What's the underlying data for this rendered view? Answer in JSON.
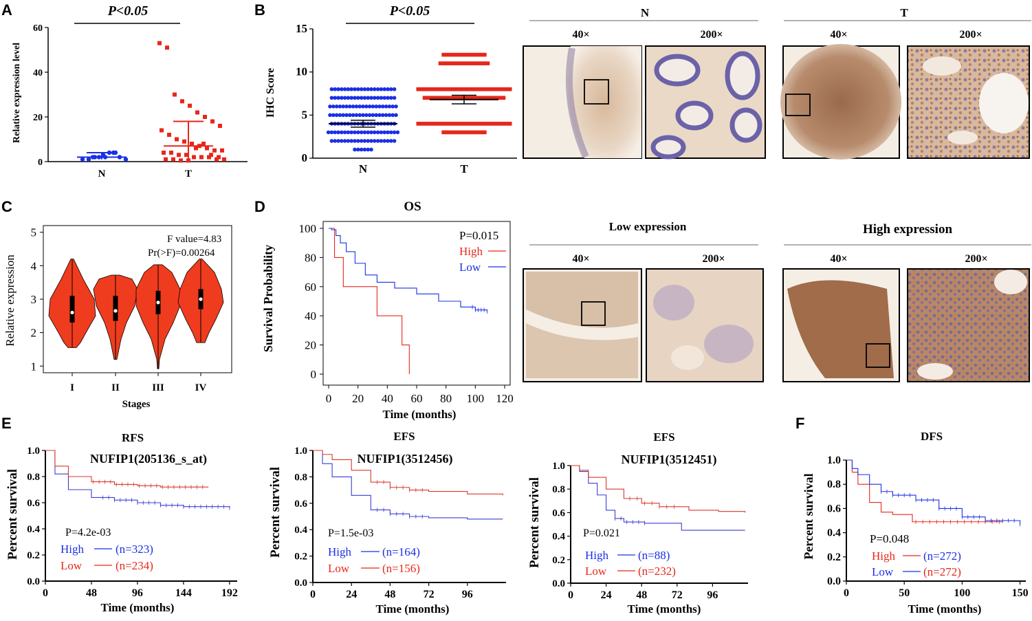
{
  "panels": {
    "A": {
      "letter": "A",
      "pvalue": "P<0.05",
      "ylabel": "Relative expression level",
      "yticks": [
        "0",
        "20",
        "40",
        "60"
      ],
      "groups": [
        "N",
        "T"
      ]
    },
    "B": {
      "letter": "B",
      "pvalue": "P<0.05",
      "ylabel": "IHC Score",
      "yticks": [
        "0",
        "5",
        "10",
        "15"
      ],
      "groups": [
        "N",
        "T"
      ],
      "ihc_n_title": "N",
      "ihc_t_title": "T",
      "mag_low": "40×",
      "mag_high": "200×"
    },
    "C": {
      "letter": "C",
      "ylabel": "Relative expression",
      "xlabel": "Stages",
      "yticks": [
        "1",
        "2",
        "3",
        "4",
        "5"
      ],
      "stages": [
        "I",
        "II",
        "III",
        "IV"
      ],
      "f_value": "F value=4.83",
      "pr": "Pr(>F)=0.00264"
    },
    "D": {
      "letter": "D",
      "title": "OS",
      "ylabel": "Survival  Probability",
      "xlabel": "Time (months)",
      "yticks": [
        "0",
        "20",
        "40",
        "60",
        "80",
        "100"
      ],
      "xticks": [
        "0",
        "20",
        "40",
        "60",
        "80",
        "100",
        "120"
      ],
      "pvalue": "P=0.015",
      "legend_high": "High",
      "legend_low": "Low",
      "ihc_low_title": "Low expression",
      "ihc_high_title": "High expression",
      "mag_low": "40×",
      "mag_high": "200×"
    },
    "E": {
      "letter": "E",
      "e1": {
        "title": "RFS",
        "gene": "NUFIP1(205136_s_at)",
        "pvalue": "P=4.2e-03",
        "high": "High",
        "low": "Low",
        "n_high": "(n=323)",
        "n_low": "(n=234)",
        "xticks": [
          "0",
          "48",
          "96",
          "144",
          "192"
        ],
        "yticks": [
          "0.0",
          "0.2",
          "0.4",
          "0.6",
          "0.8",
          "1.0"
        ]
      },
      "e2": {
        "title": "EFS",
        "gene": "NUFIP1(3512456)",
        "pvalue": "P=1.5e-03",
        "high": "High",
        "low": "Low",
        "n_high": "(n=164)",
        "n_low": "(n=156)",
        "xticks": [
          "0",
          "24",
          "48",
          "72",
          "96"
        ],
        "yticks": [
          "0.0",
          "0.2",
          "0.4",
          "0.6",
          "0.8",
          "1.0"
        ]
      },
      "e3": {
        "title": "EFS",
        "gene": "NUFIP1(3512451)",
        "pvalue": "P=0.021",
        "high": "High",
        "low": "Low",
        "n_high": "(n=88)",
        "n_low": "(n=232)",
        "xticks": [
          "0",
          "24",
          "48",
          "72",
          "96"
        ],
        "yticks": [
          "0.0",
          "0.2",
          "0.4",
          "0.6",
          "0.8",
          "1.0"
        ]
      },
      "ylabel": "Percent survival",
      "xlabel": "Time (months)"
    },
    "F": {
      "letter": "F",
      "title": "DFS",
      "pvalue": "P=0.048",
      "high": "High",
      "low": "Low",
      "n_high": "(n=272)",
      "n_low": "(n=272)",
      "xticks": [
        "0",
        "50",
        "100",
        "150"
      ],
      "yticks": [
        "0.0",
        "0.2",
        "0.4",
        "0.6",
        "0.8",
        "1.0"
      ],
      "ylabel": "Percent survival",
      "xlabel": "Time (months)"
    }
  },
  "colors": {
    "blue": "#1a2fe6",
    "red": "#e8261a",
    "km_blue": "#3b3bd6",
    "km_red": "#d9372b",
    "violin": "#f03c1e"
  },
  "chart_data": [
    {
      "type": "scatter",
      "panel": "A",
      "title": "P<0.05",
      "ylabel": "Relative expression level",
      "ylim": [
        0,
        60
      ],
      "categories": [
        "N",
        "T"
      ],
      "summary": [
        {
          "name": "N",
          "mean": 2,
          "sd": 2
        },
        {
          "name": "T",
          "mean": 7,
          "sd": 11
        }
      ]
    },
    {
      "type": "scatter",
      "panel": "B",
      "ylabel": "IHC Score",
      "ylim": [
        0,
        15
      ],
      "categories": [
        "N",
        "T"
      ],
      "summary": [
        {
          "name": "N",
          "mean": 4
        },
        {
          "name": "T",
          "mean": 6.8
        }
      ]
    },
    {
      "type": "violin",
      "panel": "C",
      "xlabel": "Stages",
      "ylabel": "Relative expression",
      "ylim": [
        1,
        5
      ],
      "categories": [
        "I",
        "II",
        "III",
        "IV"
      ],
      "medians": [
        2.6,
        2.65,
        2.9,
        3.0
      ],
      "f_value": 4.83,
      "pr": 0.00264
    },
    {
      "type": "line",
      "panel": "D",
      "title": "OS",
      "xlabel": "Time (months)",
      "ylabel": "Survival  Probability",
      "xlim": [
        0,
        120
      ],
      "ylim": [
        0,
        100
      ],
      "series": [
        {
          "name": "High",
          "x": [
            0,
            4,
            4,
            10,
            10,
            33,
            33,
            50,
            50,
            55,
            55
          ],
          "y": [
            100,
            100,
            80,
            80,
            60,
            60,
            40,
            40,
            20,
            20,
            0
          ]
        },
        {
          "name": "Low",
          "x": [
            0,
            2,
            5,
            8,
            12,
            18,
            25,
            33,
            45,
            60,
            75,
            90,
            100,
            108
          ],
          "y": [
            100,
            99,
            95,
            90,
            84,
            76,
            68,
            63,
            59,
            55,
            50,
            46,
            44,
            43
          ]
        }
      ]
    },
    {
      "type": "line",
      "panel": "E-RFS",
      "xlim": [
        0,
        200
      ],
      "ylim": [
        0,
        1
      ],
      "series": [
        {
          "name": "High",
          "x": [
            0,
            10,
            24,
            48,
            72,
            96,
            120,
            144,
            192
          ],
          "y": [
            1.0,
            0.82,
            0.7,
            0.64,
            0.62,
            0.6,
            0.58,
            0.57,
            0.56
          ]
        },
        {
          "name": "Low",
          "x": [
            0,
            10,
            24,
            48,
            72,
            96,
            120,
            144,
            170
          ],
          "y": [
            1.0,
            0.88,
            0.8,
            0.76,
            0.74,
            0.73,
            0.72,
            0.72,
            0.72
          ]
        }
      ]
    },
    {
      "type": "line",
      "panel": "E-EFS-3512456",
      "xlim": [
        0,
        120
      ],
      "ylim": [
        0,
        1
      ],
      "series": [
        {
          "name": "High",
          "x": [
            0,
            6,
            12,
            24,
            36,
            48,
            60,
            72,
            96,
            118
          ],
          "y": [
            1.0,
            0.9,
            0.8,
            0.66,
            0.55,
            0.52,
            0.5,
            0.49,
            0.48,
            0.48
          ]
        },
        {
          "name": "Low",
          "x": [
            0,
            6,
            12,
            24,
            36,
            48,
            60,
            72,
            96,
            118
          ],
          "y": [
            1.0,
            0.97,
            0.93,
            0.85,
            0.76,
            0.72,
            0.7,
            0.69,
            0.67,
            0.66
          ]
        }
      ]
    },
    {
      "type": "line",
      "panel": "E-EFS-3512451",
      "xlim": [
        0,
        120
      ],
      "ylim": [
        0,
        1
      ],
      "series": [
        {
          "name": "High",
          "x": [
            0,
            6,
            12,
            18,
            24,
            30,
            36,
            50,
            75,
            75,
            118
          ],
          "y": [
            1.0,
            0.95,
            0.85,
            0.75,
            0.62,
            0.55,
            0.52,
            0.51,
            0.51,
            0.45,
            0.45
          ]
        },
        {
          "name": "Low",
          "x": [
            0,
            6,
            12,
            24,
            36,
            48,
            60,
            80,
            100,
            118
          ],
          "y": [
            1.0,
            0.96,
            0.9,
            0.8,
            0.72,
            0.68,
            0.65,
            0.62,
            0.61,
            0.6
          ]
        }
      ]
    },
    {
      "type": "line",
      "panel": "F",
      "title": "DFS",
      "xlim": [
        0,
        155
      ],
      "ylim": [
        0,
        1
      ],
      "series": [
        {
          "name": "High",
          "x": [
            0,
            5,
            10,
            20,
            30,
            40,
            57,
            57,
            100,
            135
          ],
          "y": [
            1.0,
            0.9,
            0.8,
            0.65,
            0.57,
            0.55,
            0.55,
            0.49,
            0.49,
            0.49
          ]
        },
        {
          "name": "Low",
          "x": [
            0,
            5,
            10,
            20,
            30,
            40,
            60,
            80,
            100,
            120,
            150
          ],
          "y": [
            1.0,
            0.93,
            0.88,
            0.8,
            0.74,
            0.71,
            0.67,
            0.6,
            0.53,
            0.5,
            0.47
          ]
        }
      ]
    }
  ]
}
